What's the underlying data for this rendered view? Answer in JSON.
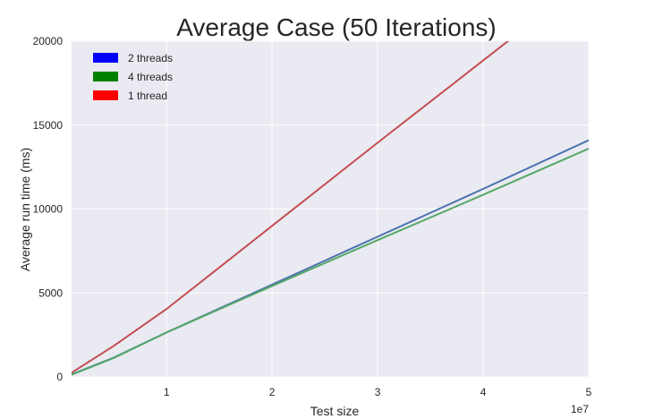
{
  "chart_data": {
    "type": "line",
    "title": "Average Case (50 Iterations)",
    "xlabel": "Test size",
    "ylabel": "Average run time (ms)",
    "x_offset_label": "1e7",
    "xlim": [
      1000000,
      50000000
    ],
    "ylim": [
      0,
      20000
    ],
    "x_ticks": [
      10000000,
      20000000,
      30000000,
      40000000,
      50000000
    ],
    "x_tick_labels": [
      "1",
      "2",
      "3",
      "4",
      "5"
    ],
    "y_ticks": [
      0,
      5000,
      10000,
      15000,
      20000
    ],
    "y_tick_labels": [
      "0",
      "5000",
      "10000",
      "15000",
      "20000"
    ],
    "grid": true,
    "background_color": "#eaeaf2",
    "grid_color": "#ffffff",
    "legend_position": "top-left",
    "legend": [
      {
        "label": "2 threads",
        "color": "#0000ff"
      },
      {
        "label": "4 threads",
        "color": "#008000"
      },
      {
        "label": "1 thread",
        "color": "#ff0000"
      }
    ],
    "series": [
      {
        "name": "2 threads",
        "color": "#4c72b0",
        "x": [
          1000000,
          5000000,
          10000000,
          20000000,
          30000000,
          40000000,
          50000000
        ],
        "y": [
          150,
          1150,
          2650,
          5500,
          8350,
          11200,
          14100
        ]
      },
      {
        "name": "4 threads",
        "color": "#55a868",
        "x": [
          1000000,
          5000000,
          10000000,
          20000000,
          30000000,
          40000000,
          50000000
        ],
        "y": [
          130,
          1130,
          2650,
          5420,
          8150,
          10850,
          13600
        ]
      },
      {
        "name": "1 thread",
        "color": "#c44e52",
        "x": [
          1000000,
          5000000,
          10000000,
          20000000,
          30000000,
          40000000,
          45000000
        ],
        "y": [
          250,
          1850,
          4050,
          9000,
          13950,
          18850,
          21300
        ]
      }
    ]
  }
}
